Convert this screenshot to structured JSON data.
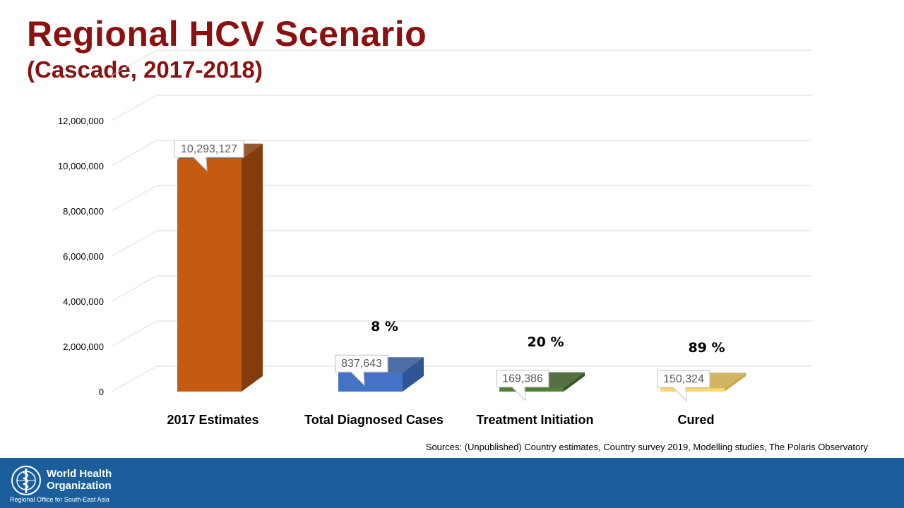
{
  "slide": {
    "title": "Regional HCV Scenario",
    "subtitle": "(Cascade, 2017-2018)",
    "sources": "Sources: (Unpublished) Country estimates, Country survey 2019, Modelling studies, The Polaris Observatory"
  },
  "footer": {
    "org_name": "World Health Organization",
    "org_region": "Regional Office for South-East Asia",
    "emblem_icon": "who-emblem-icon"
  },
  "chart_data": {
    "type": "bar",
    "categories": [
      "2017 Estimates",
      "Total Diagnosed Cases",
      "Treatment Initiation",
      "Cured"
    ],
    "values": [
      10293127,
      837643,
      169386,
      150324
    ],
    "value_labels": [
      "10,293,127",
      "837,643",
      "169,386",
      "150,324"
    ],
    "percent_labels": [
      "",
      "8 %",
      "20 %",
      "89 %"
    ],
    "ylim": [
      0,
      12000000
    ],
    "yticks": [
      0,
      2000000,
      4000000,
      6000000,
      8000000,
      10000000,
      12000000
    ],
    "ytick_labels": [
      "0",
      "2,000,000",
      "4,000,000",
      "6,000,000",
      "8,000,000",
      "10,000,000",
      "12,000,000"
    ],
    "xlabel": "",
    "ylabel": "",
    "grid": true,
    "legend": false,
    "colors": {
      "bars": [
        "#c55a11",
        "#4472c4",
        "#548235",
        "#ffd966"
      ],
      "bar_sides": [
        "#843c0c",
        "#2f5597",
        "#385723",
        "#c9a84a"
      ],
      "grid": "#d9d9d9",
      "title": "#8b1010",
      "footer": "#1a5f9c"
    }
  }
}
